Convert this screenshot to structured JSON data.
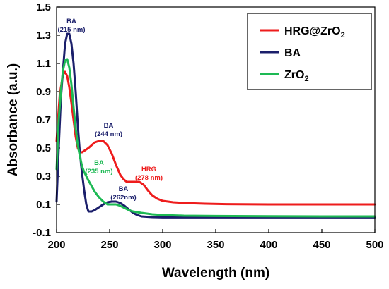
{
  "chart_data": {
    "type": "line",
    "xlabel": "Wavelength (nm)",
    "ylabel": "Absorbance (a.u.)",
    "xlim": [
      200,
      500
    ],
    "ylim": [
      -0.1,
      1.5
    ],
    "xticks": [
      200,
      250,
      300,
      350,
      400,
      450,
      500
    ],
    "yticks": [
      -0.1,
      0.1,
      0.3,
      0.5,
      0.7,
      0.9,
      1.1,
      1.3,
      1.5
    ],
    "grid": false,
    "legend_position": "top-right",
    "series": [
      {
        "name": "HRG@ZrO2",
        "name_main": "HRG@ZrO",
        "name_sub": "2",
        "color": "#ee1c1c",
        "x": [
          200,
          203,
          206,
          208,
          210,
          212,
          214,
          216,
          218,
          220,
          222,
          224,
          226,
          228,
          230,
          233,
          236,
          240,
          244,
          248,
          252,
          256,
          260,
          263,
          266,
          270,
          274,
          278,
          282,
          286,
          290,
          295,
          300,
          310,
          320,
          340,
          360,
          400,
          450,
          500
        ],
        "y": [
          0.55,
          0.88,
          1.02,
          1.04,
          1.01,
          0.93,
          0.82,
          0.7,
          0.58,
          0.5,
          0.47,
          0.47,
          0.48,
          0.49,
          0.5,
          0.52,
          0.54,
          0.55,
          0.55,
          0.52,
          0.46,
          0.38,
          0.31,
          0.28,
          0.26,
          0.26,
          0.26,
          0.26,
          0.24,
          0.2,
          0.165,
          0.14,
          0.125,
          0.115,
          0.11,
          0.105,
          0.102,
          0.1,
          0.1,
          0.1
        ]
      },
      {
        "name": "BA",
        "name_main": "BA",
        "name_sub": "",
        "color": "#1b1f6b",
        "x": [
          200,
          202,
          204,
          206,
          208,
          210,
          212,
          214,
          216,
          218,
          220,
          222,
          224,
          226,
          228,
          230,
          233,
          236,
          240,
          244,
          248,
          252,
          256,
          260,
          264,
          268,
          272,
          276,
          280,
          290,
          300,
          350,
          400,
          450,
          500
        ],
        "y": [
          0.12,
          0.5,
          0.85,
          1.05,
          1.24,
          1.31,
          1.31,
          1.24,
          1.1,
          0.9,
          0.66,
          0.46,
          0.32,
          0.2,
          0.1,
          0.05,
          0.05,
          0.06,
          0.08,
          0.1,
          0.115,
          0.12,
          0.12,
          0.11,
          0.09,
          0.065,
          0.04,
          0.025,
          0.015,
          0.01,
          0.008,
          0.008,
          0.008,
          0.008,
          0.008
        ]
      },
      {
        "name": "ZrO2",
        "name_main": "ZrO",
        "name_sub": "2",
        "color": "#1db954",
        "x": [
          200,
          202,
          204,
          206,
          208,
          210,
          212,
          214,
          216,
          218,
          220,
          222,
          224,
          226,
          228,
          230,
          233,
          236,
          240,
          244,
          248,
          252,
          256,
          260,
          264,
          268,
          272,
          276,
          280,
          290,
          300,
          320,
          350,
          400,
          450,
          500
        ],
        "y": [
          0.35,
          0.7,
          0.9,
          1.05,
          1.12,
          1.13,
          1.07,
          0.95,
          0.79,
          0.64,
          0.52,
          0.44,
          0.37,
          0.33,
          0.3,
          0.27,
          0.23,
          0.19,
          0.15,
          0.12,
          0.1,
          0.1,
          0.1,
          0.09,
          0.075,
          0.06,
          0.05,
          0.045,
          0.04,
          0.03,
          0.025,
          0.02,
          0.018,
          0.016,
          0.015,
          0.015
        ]
      }
    ],
    "annotations": [
      {
        "lines": [
          "BA",
          "(215 nm)"
        ],
        "x": 214,
        "y": 1.385,
        "color": "#1b1f6b"
      },
      {
        "lines": [
          "BA",
          "(244 nm)"
        ],
        "x": 249,
        "y": 0.645,
        "color": "#1b1f6b"
      },
      {
        "lines": [
          "BA",
          "(235 nm)"
        ],
        "x": 240,
        "y": 0.38,
        "color": "#1db954"
      },
      {
        "lines": [
          "HRG",
          "(278 nm)"
        ],
        "x": 287,
        "y": 0.335,
        "color": "#ee1c1c"
      },
      {
        "lines": [
          "BA",
          "(262nm)"
        ],
        "x": 263,
        "y": 0.195,
        "color": "#1b1f6b"
      }
    ]
  }
}
